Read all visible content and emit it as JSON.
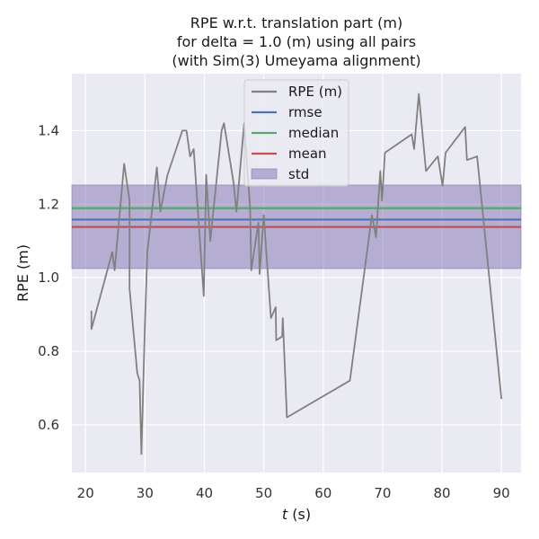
{
  "chart_data": {
    "type": "line",
    "title_lines": [
      "RPE w.r.t. translation part (m)",
      "for delta = 1.0 (m) using all pairs",
      "(with Sim(3) Umeyama alignment)"
    ],
    "xlabel_var": "t",
    "xlabel_unit": " (s)",
    "ylabel": "RPE (m)",
    "xlim": [
      17.7,
      93.3
    ],
    "ylim": [
      0.47,
      1.555
    ],
    "xticks": [
      20,
      30,
      40,
      50,
      60,
      70,
      80,
      90
    ],
    "yticks": [
      0.6,
      0.8,
      1.0,
      1.2,
      1.4
    ],
    "ytick_labels": [
      "0.6",
      "0.8",
      "1.0",
      "1.2",
      "1.4"
    ],
    "grid": true,
    "legend_position": "upper center",
    "series": [
      {
        "name": "RPE (m)",
        "color": "#808080",
        "x": [
          21.0,
          21.0,
          24.5,
          24.9,
          26.5,
          27.4,
          27.4,
          28.7,
          29.1,
          29.4,
          30.0,
          30.4,
          32.0,
          32.6,
          33.8,
          36.3,
          37.0,
          37.6,
          38.2,
          39.9,
          40.3,
          41.0,
          42.9,
          43.3,
          44.9,
          45.4,
          46.7,
          47.7,
          47.9,
          49.1,
          49.3,
          50.0,
          51.2,
          52.0,
          52.1,
          53.1,
          53.2,
          53.9,
          64.5,
          68.2,
          68.9,
          69.6,
          69.9,
          70.4,
          74.9,
          75.3,
          76.1,
          77.3,
          79.3,
          80.1,
          80.6,
          83.9,
          84.2,
          85.9,
          90.0
        ],
        "y": [
          0.91,
          0.86,
          1.07,
          1.02,
          1.31,
          1.21,
          0.97,
          0.74,
          0.72,
          0.52,
          0.87,
          1.07,
          1.3,
          1.18,
          1.28,
          1.4,
          1.4,
          1.33,
          1.35,
          0.95,
          1.28,
          1.1,
          1.4,
          1.42,
          1.26,
          1.18,
          1.42,
          1.19,
          1.02,
          1.15,
          1.01,
          1.17,
          0.89,
          0.92,
          0.83,
          0.84,
          0.89,
          0.62,
          0.72,
          1.17,
          1.11,
          1.29,
          1.21,
          1.34,
          1.39,
          1.35,
          1.5,
          1.29,
          1.33,
          1.25,
          1.34,
          1.41,
          1.32,
          1.33,
          0.67
        ]
      }
    ],
    "stats": {
      "rmse": {
        "value": 1.158,
        "color": "#4c72b0"
      },
      "median": {
        "value": 1.189,
        "color": "#55a868"
      },
      "mean": {
        "value": 1.138,
        "color": "#c44e52"
      },
      "std_band": {
        "low": 1.025,
        "high": 1.252,
        "color": "#8172b2"
      }
    },
    "legend": [
      {
        "label": "RPE (m)",
        "kind": "line",
        "color": "#808080"
      },
      {
        "label": "rmse",
        "kind": "line",
        "color": "#4c72b0"
      },
      {
        "label": "median",
        "kind": "line",
        "color": "#55a868"
      },
      {
        "label": "mean",
        "kind": "line",
        "color": "#c44e52"
      },
      {
        "label": "std",
        "kind": "patch",
        "color": "#8172b2"
      }
    ]
  }
}
